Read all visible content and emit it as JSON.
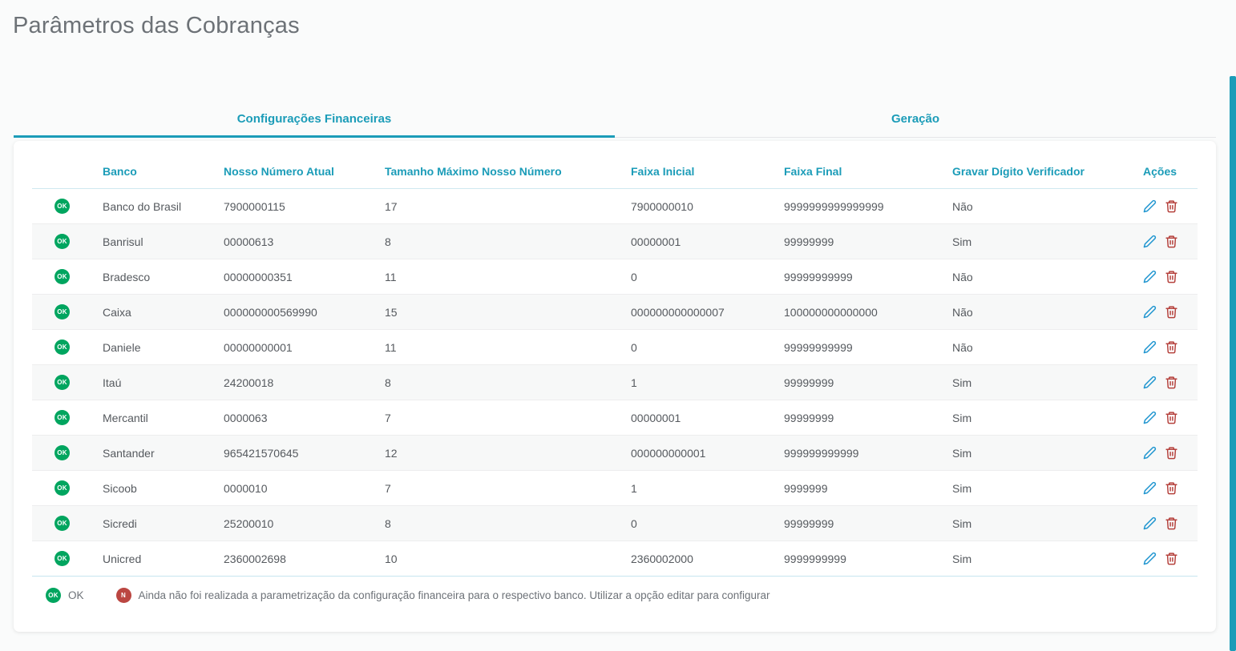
{
  "page": {
    "title": "Parâmetros das Cobranças"
  },
  "tabs": [
    {
      "label": "Configurações Financeiras",
      "active": true
    },
    {
      "label": "Geração",
      "active": false
    }
  ],
  "table": {
    "columns": [
      "Banco",
      "Nosso Número Atual",
      "Tamanho Máximo Nosso Número",
      "Faixa Inicial",
      "Faixa Final",
      "Gravar Dígito Verificador",
      "Ações"
    ],
    "rows": [
      {
        "status": "OK",
        "banco": "Banco do Brasil",
        "nosso_numero_atual": "7900000115",
        "tamanho_maximo": "17",
        "faixa_inicial": "7900000010",
        "faixa_final": "9999999999999999",
        "gravar_digito": "Não"
      },
      {
        "status": "OK",
        "banco": "Banrisul",
        "nosso_numero_atual": "00000613",
        "tamanho_maximo": "8",
        "faixa_inicial": "00000001",
        "faixa_final": "99999999",
        "gravar_digito": "Sim"
      },
      {
        "status": "OK",
        "banco": "Bradesco",
        "nosso_numero_atual": "00000000351",
        "tamanho_maximo": "11",
        "faixa_inicial": "0",
        "faixa_final": "99999999999",
        "gravar_digito": "Não"
      },
      {
        "status": "OK",
        "banco": "Caixa",
        "nosso_numero_atual": "000000000569990",
        "tamanho_maximo": "15",
        "faixa_inicial": "000000000000007",
        "faixa_final": "100000000000000",
        "gravar_digito": "Não"
      },
      {
        "status": "OK",
        "banco": "Daniele",
        "nosso_numero_atual": "00000000001",
        "tamanho_maximo": "11",
        "faixa_inicial": "0",
        "faixa_final": "99999999999",
        "gravar_digito": "Não"
      },
      {
        "status": "OK",
        "banco": "Itaú",
        "nosso_numero_atual": "24200018",
        "tamanho_maximo": "8",
        "faixa_inicial": "1",
        "faixa_final": "99999999",
        "gravar_digito": "Sim"
      },
      {
        "status": "OK",
        "banco": "Mercantil",
        "nosso_numero_atual": "0000063",
        "tamanho_maximo": "7",
        "faixa_inicial": "00000001",
        "faixa_final": "99999999",
        "gravar_digito": "Sim"
      },
      {
        "status": "OK",
        "banco": "Santander",
        "nosso_numero_atual": "965421570645",
        "tamanho_maximo": "12",
        "faixa_inicial": "000000000001",
        "faixa_final": "999999999999",
        "gravar_digito": "Sim"
      },
      {
        "status": "OK",
        "banco": "Sicoob",
        "nosso_numero_atual": "0000010",
        "tamanho_maximo": "7",
        "faixa_inicial": "1",
        "faixa_final": "9999999",
        "gravar_digito": "Sim"
      },
      {
        "status": "OK",
        "banco": "Sicredi",
        "nosso_numero_atual": "25200010",
        "tamanho_maximo": "8",
        "faixa_inicial": "0",
        "faixa_final": "99999999",
        "gravar_digito": "Sim"
      },
      {
        "status": "OK",
        "banco": "Unicred",
        "nosso_numero_atual": "2360002698",
        "tamanho_maximo": "10",
        "faixa_inicial": "2360002000",
        "faixa_final": "9999999999",
        "gravar_digito": "Sim"
      }
    ]
  },
  "legend": {
    "ok_badge": "OK",
    "ok_label": "OK",
    "n_badge": "N",
    "n_text": "Ainda não foi realizada a parametrização da configuração financeira para o respectivo banco. Utilizar a opção editar para configurar"
  },
  "colors": {
    "accent_teal": "#1b9cb8",
    "status_green": "#00a55f",
    "badge_red": "#bb4641",
    "edit_blue": "#2196d0",
    "delete_red": "#b5413c",
    "title_gray": "#6d7277",
    "cell_text": "#55595e"
  }
}
